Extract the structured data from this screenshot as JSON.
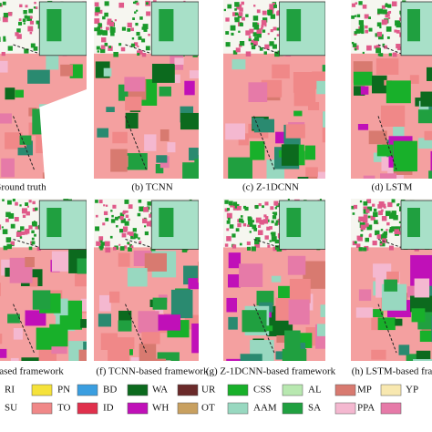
{
  "panels": [
    {
      "caption": "Ground truth"
    },
    {
      "caption": "(b) TCNN"
    },
    {
      "caption": "(c) Z-1DCNN"
    },
    {
      "caption": "(d) LSTM"
    },
    {
      "caption": "NN-based framework"
    },
    {
      "caption": "(f) TCNN-based framework"
    },
    {
      "caption": "(g) Z-1DCNN-based framework"
    },
    {
      "caption": "(h) LSTM-based fra"
    }
  ],
  "legend": {
    "rows": [
      [
        {
          "label": "RI"
        },
        {
          "label": "PN",
          "color": "#f5e23a"
        },
        {
          "label": "BD",
          "color": "#3a9ee0"
        },
        {
          "label": "WA",
          "color": "#0c6a1e"
        },
        {
          "label": "UR",
          "color": "#6a2a2a"
        },
        {
          "label": "CSS",
          "color": "#18b02a"
        },
        {
          "label": "AL",
          "color": "#b8e8b0"
        },
        {
          "label": "MP",
          "color": "#d87a70"
        },
        {
          "label": "YP",
          "color": "#f8e8b0"
        }
      ],
      [
        {
          "label": "SU"
        },
        {
          "label": "TO",
          "color": "#f08888"
        },
        {
          "label": "ID",
          "color": "#e0304c"
        },
        {
          "label": "WH",
          "color": "#c010b8"
        },
        {
          "label": "OT",
          "color": "#c8a060"
        },
        {
          "label": "AAM",
          "color": "#98d8c0"
        },
        {
          "label": "SA",
          "color": "#20a040"
        },
        {
          "label": "PPA",
          "color": "#f4b8d0"
        },
        {
          "color": "#e67aa8"
        }
      ]
    ]
  }
}
